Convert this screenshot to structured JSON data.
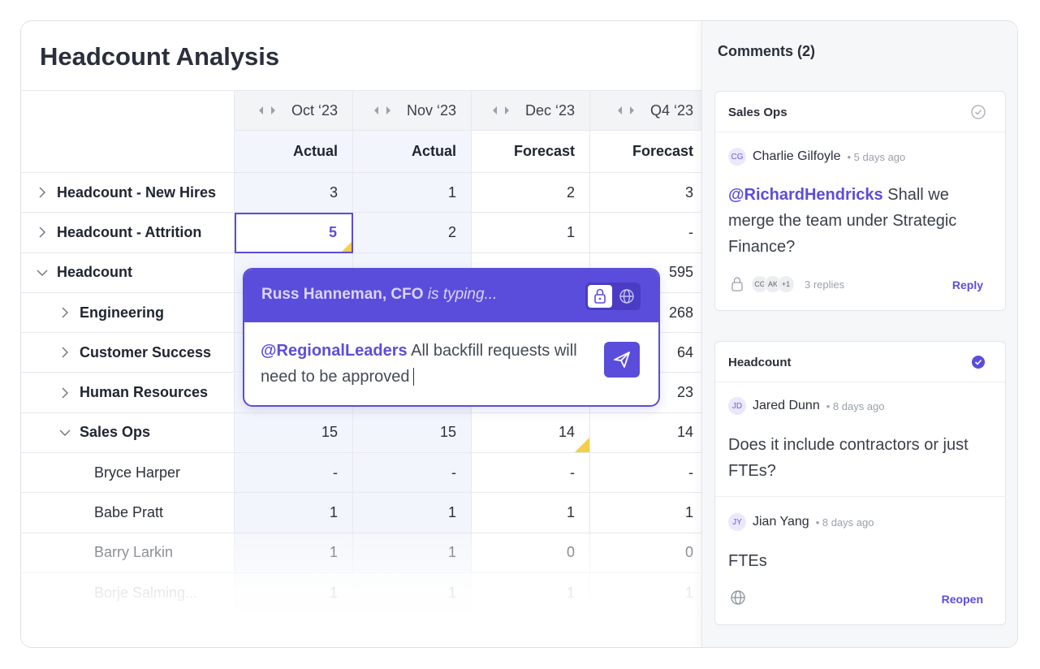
{
  "title": "Headcount Analysis",
  "table": {
    "columns": [
      {
        "period": "Oct ‘23",
        "kind": "Actual"
      },
      {
        "period": "Nov ‘23",
        "kind": "Actual"
      },
      {
        "period": "Dec ‘23",
        "kind": "Forecast"
      },
      {
        "period": "Q4 ‘23",
        "kind": "Forecast"
      }
    ],
    "rows": [
      {
        "label": "Headcount - New Hires",
        "values": [
          3,
          1,
          2,
          3
        ]
      },
      {
        "label": "Headcount - Attrition",
        "values": [
          5,
          2,
          1,
          "-"
        ]
      },
      {
        "label": "Headcount",
        "values": [
          null,
          null,
          null,
          595
        ]
      },
      {
        "label": "Engineering",
        "values": [
          null,
          null,
          null,
          268
        ]
      },
      {
        "label": "Customer Success",
        "values": [
          null,
          null,
          null,
          64
        ]
      },
      {
        "label": "Human Resources",
        "values": [
          null,
          null,
          null,
          23
        ]
      },
      {
        "label": "Sales Ops",
        "values": [
          15,
          15,
          14,
          14
        ]
      },
      {
        "label": "Bryce Harper",
        "values": [
          "-",
          "-",
          "-",
          "-"
        ]
      },
      {
        "label": "Babe Pratt",
        "values": [
          1,
          1,
          1,
          1
        ]
      },
      {
        "label": "Barry Larkin",
        "values": [
          1,
          1,
          0,
          0
        ]
      },
      {
        "label": "Borje Salming...",
        "values": [
          1,
          1,
          1,
          1
        ]
      }
    ]
  },
  "typing": {
    "author": "Russ Hanneman, CFO",
    "status": "is typing...",
    "mention": "@RegionalLeaders",
    "text": "All backfill requests will need to be approved"
  },
  "comments": {
    "header": "Comments (2)",
    "threads": [
      {
        "title": "Sales Ops",
        "comments": [
          {
            "initials": "CG",
            "author": "Charlie Gilfoyle",
            "time": "5 days ago",
            "mention": "@RichardHendricks",
            "text": "Shall we merge the team under Strategic Finance?"
          }
        ],
        "avatars": [
          "CG",
          "AK",
          "+1"
        ],
        "replies": "3 replies",
        "action": "Reply"
      },
      {
        "title": "Headcount",
        "comments": [
          {
            "initials": "JD",
            "author": "Jared Dunn",
            "time": "8 days ago",
            "text": "Does it include contractors or just FTEs?"
          },
          {
            "initials": "JY",
            "author": "Jian Yang",
            "time": "8 days ago",
            "text": "FTEs"
          }
        ],
        "action": "Reopen"
      }
    ]
  }
}
